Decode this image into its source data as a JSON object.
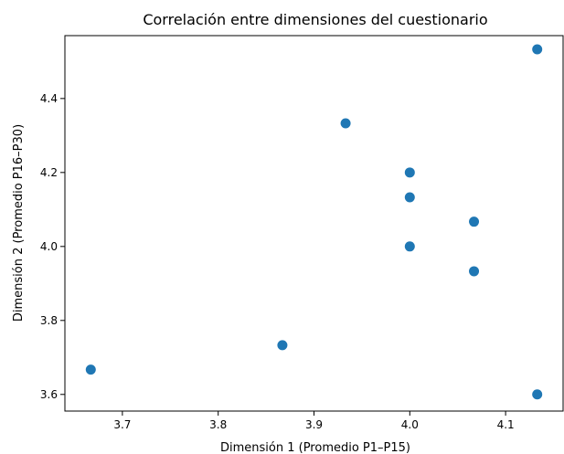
{
  "chart_data": {
    "type": "scatter",
    "title": "Correlación entre dimensiones del cuestionario",
    "xlabel": "Dimensión 1 (Promedio P1–P15)",
    "ylabel": "Dimensión 2 (Promedio P16–P30)",
    "xlim": [
      3.64,
      4.16
    ],
    "ylim": [
      3.555,
      4.57
    ],
    "xticks": [
      "3.7",
      "3.8",
      "3.9",
      "4.0",
      "4.1"
    ],
    "yticks": [
      "3.6",
      "3.8",
      "4.0",
      "4.2",
      "4.4"
    ],
    "grid": false,
    "point_color": "#1f77b4",
    "points": [
      {
        "x": 3.667,
        "y": 3.667
      },
      {
        "x": 3.867,
        "y": 3.733
      },
      {
        "x": 3.933,
        "y": 4.333
      },
      {
        "x": 4.0,
        "y": 4.2
      },
      {
        "x": 4.0,
        "y": 4.133
      },
      {
        "x": 4.0,
        "y": 4.0
      },
      {
        "x": 4.067,
        "y": 4.067
      },
      {
        "x": 4.067,
        "y": 3.933
      },
      {
        "x": 4.133,
        "y": 4.533
      },
      {
        "x": 4.133,
        "y": 3.6
      }
    ]
  }
}
